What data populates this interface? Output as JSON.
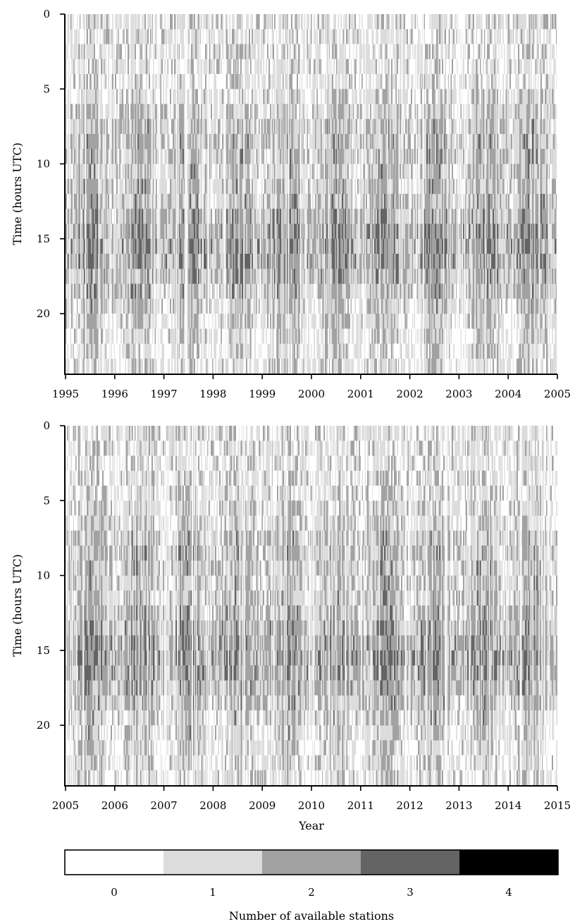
{
  "chart_data": [
    {
      "type": "heatmap",
      "title": "",
      "xlabel": "",
      "ylabel": "Time (hours UTC)",
      "xlim": [
        1995,
        2005
      ],
      "ylim": [
        24,
        0
      ],
      "x_ticks": [
        "1995",
        "1996",
        "1997",
        "1998",
        "1999",
        "2000",
        "2001",
        "2002",
        "2003",
        "2004",
        "2005"
      ],
      "y_ticks": [
        "0",
        "5",
        "10",
        "15",
        "20"
      ],
      "value_range": [
        0,
        4
      ],
      "description_of_values": "hourly count of available stations per day, mostly 0-2 with maxima of 3-4 around 12-18 UTC"
    },
    {
      "type": "heatmap",
      "title": "",
      "xlabel": "Year",
      "ylabel": "Time (hours UTC)",
      "xlim": [
        2005,
        2015
      ],
      "ylim": [
        24,
        0
      ],
      "x_ticks": [
        "2005",
        "2006",
        "2007",
        "2008",
        "2009",
        "2010",
        "2011",
        "2012",
        "2013",
        "2014",
        "2015"
      ],
      "y_ticks": [
        "0",
        "5",
        "10",
        "15",
        "20"
      ],
      "value_range": [
        0,
        4
      ]
    }
  ],
  "colorbar": {
    "label": "Number of available stations",
    "levels": [
      {
        "value": "0",
        "color": "#ffffff"
      },
      {
        "value": "1",
        "color": "#dcdcdc"
      },
      {
        "value": "2",
        "color": "#a2a2a2"
      },
      {
        "value": "3",
        "color": "#646464"
      },
      {
        "value": "4",
        "color": "#000000"
      }
    ]
  }
}
